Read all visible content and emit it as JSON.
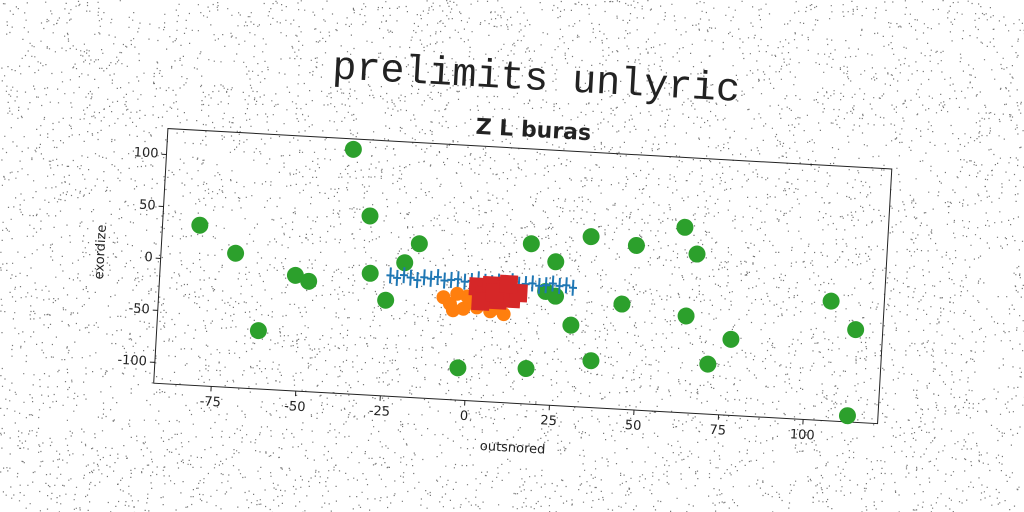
{
  "chart_data": {
    "type": "scatter",
    "title": "prelimits unlyric",
    "subtitle": "Z L buras",
    "xlabel": "outsnored",
    "ylabel": "exordize",
    "xlim": [
      -92,
      122
    ],
    "ylim": [
      -120,
      125
    ],
    "xticks": [
      -75,
      -50,
      -25,
      0,
      25,
      50,
      75,
      100
    ],
    "yticks": [
      -100,
      -50,
      0,
      50,
      100
    ],
    "series": [
      {
        "color": "#2ca02c",
        "marker": "circle",
        "x": [
          -37,
          -31,
          -70,
          -81,
          -62,
          -52,
          -48,
          -30,
          -25,
          -16,
          -20,
          17,
          24.5,
          34.5,
          48,
          62,
          66,
          22,
          25,
          12.7,
          30,
          44.7,
          63.8,
          77.4,
          71,
          36.5,
          17.5,
          -2.6,
          106.3,
          114,
          113
        ],
        "values": [
          115,
          52,
          9,
          34,
          -64,
          -9,
          -14,
          -3,
          -28,
          28,
          9,
          34,
          18,
          44,
          38,
          58,
          33,
          -11,
          -15,
          -15,
          -42,
          -19,
          -27,
          -47,
          -72,
          -75,
          -86,
          -89,
          -5,
          -31,
          -114
        ]
      },
      {
        "color": "#1f77b4",
        "marker": "plus",
        "x": [
          -24,
          -22,
          -20,
          -18,
          -16,
          -14,
          -12,
          -10,
          -8,
          -6,
          -4,
          -2,
          0,
          2,
          4,
          6,
          8,
          10,
          12,
          14,
          16,
          18,
          20,
          22,
          24,
          26,
          28,
          30
        ],
        "values": [
          -4,
          -6,
          -3,
          -5,
          -7,
          -4,
          -5,
          -3,
          -6,
          -5,
          -4,
          -6,
          -5,
          -3,
          -5,
          -6,
          -4,
          -5,
          -3,
          -6,
          -5,
          -4,
          -6,
          -5,
          -3,
          -5,
          -4,
          -6
        ]
      },
      {
        "color": "#ff7f0e",
        "marker": "circle",
        "x": [
          -8,
          -6,
          -4,
          -2,
          0,
          2,
          4,
          6,
          8,
          10,
          -5,
          -1,
          3,
          7
        ],
        "values": [
          -22,
          -28,
          -18,
          -32,
          -25,
          -30,
          -20,
          -33,
          -27,
          -35,
          -34,
          -20,
          -26,
          -30
        ]
      },
      {
        "color": "#d62728",
        "marker": "square",
        "x": [
          2,
          4,
          6,
          8,
          10,
          12,
          14,
          3,
          7,
          11
        ],
        "values": [
          -10,
          -18,
          -8,
          -22,
          -12,
          -20,
          -14,
          -24,
          -15,
          -6
        ]
      }
    ]
  }
}
